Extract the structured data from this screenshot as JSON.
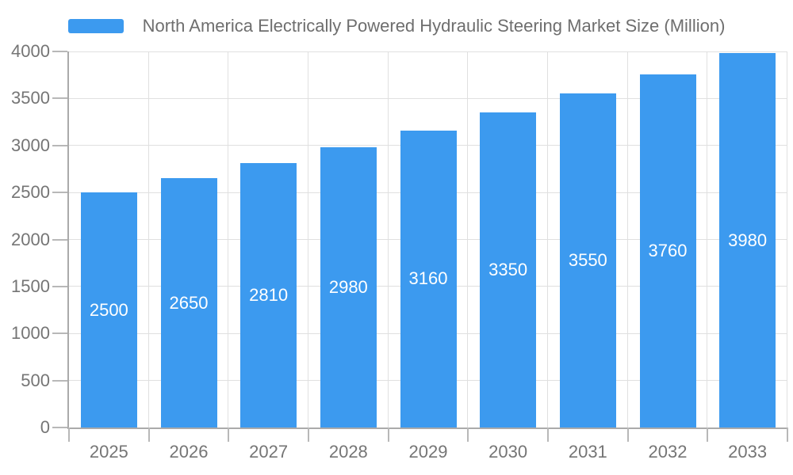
{
  "legend": {
    "position": "top",
    "series_label": "North America Electrically Powered Hydraulic Steering Market Size (Million)"
  },
  "chart_data": {
    "type": "bar",
    "title": "North America Electrically Powered Hydraulic Steering Market Size (Million)",
    "categories": [
      "2025",
      "2026",
      "2027",
      "2028",
      "2029",
      "2030",
      "2031",
      "2032",
      "2033"
    ],
    "values": [
      2500,
      2650,
      2810,
      2980,
      3160,
      3350,
      3550,
      3760,
      3980
    ],
    "bar_value_labels": [
      "2500",
      "2650",
      "2810",
      "2980",
      "3160",
      "3350",
      "3550",
      "3760",
      "3980"
    ],
    "xlabel": "",
    "ylabel": "",
    "ylim": [
      0,
      4000
    ],
    "yticks": [
      0,
      500,
      1000,
      1500,
      2000,
      2500,
      3000,
      3500,
      4000
    ],
    "grid": true,
    "legend_position": "top",
    "colors": {
      "bar": "#3C9AEF",
      "bar_label_text": "#ffffff",
      "gridline": "#e0e0e0",
      "axis_line": "#aaaaaa",
      "tick": "#b8b8b8",
      "axis_label_text": "#757575",
      "title_text": "#6e6e6e",
      "background": "#ffffff"
    }
  }
}
